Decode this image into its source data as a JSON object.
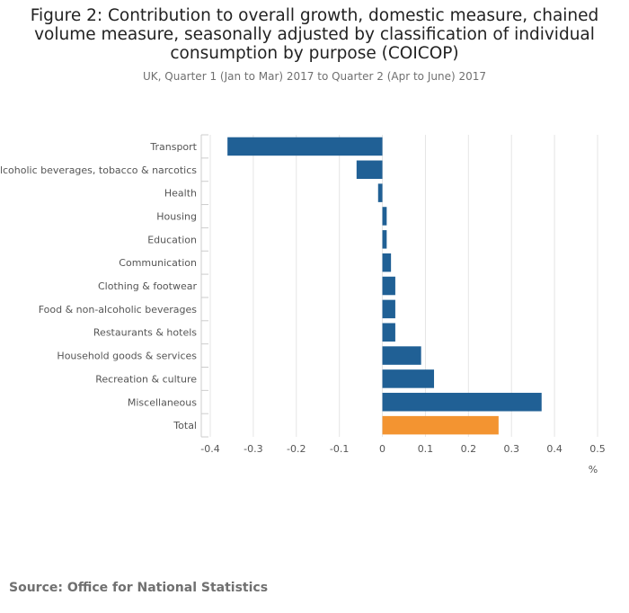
{
  "title": "Figure 2: Contribution to overall growth, domestic measure, chained volume measure, seasonally adjusted by classification of individual consumption by purpose (COICOP)",
  "subtitle": "UK, Quarter 1 (Jan to Mar) 2017 to Quarter 2 (Apr to June) 2017",
  "source": "Source: Office for National Statistics",
  "chart_data": {
    "type": "bar",
    "orientation": "horizontal",
    "title": "Figure 2: Contribution to overall growth, domestic measure, chained volume measure, seasonally adjusted by classification of individual consumption by purpose (COICOP)",
    "subtitle": "UK, Quarter 1 (Jan to Mar) 2017 to Quarter 2 (Apr to June) 2017",
    "xlabel": "%",
    "ylabel": "",
    "xlim": [
      -0.4,
      0.5
    ],
    "ticks": [
      "-0.4",
      "-0.3",
      "-0.2",
      "-0.1",
      "0",
      "0.1",
      "0.2",
      "0.3",
      "0.4",
      "0.5"
    ],
    "grid": true,
    "categories": [
      "Transport",
      "Alcoholic beverages, tobacco & narcotics",
      "Health",
      "Housing",
      "Education",
      "Communication",
      "Clothing & footwear",
      "Food & non-alcoholic beverages",
      "Restaurants & hotels",
      "Household goods & services",
      "Recreation & culture",
      "Miscellaneous",
      "Total"
    ],
    "values": [
      -0.36,
      -0.06,
      -0.01,
      0.01,
      0.01,
      0.02,
      0.03,
      0.03,
      0.03,
      0.09,
      0.12,
      0.37,
      0.27
    ],
    "colors": {
      "default": "#206095",
      "total": "#F39431"
    }
  }
}
